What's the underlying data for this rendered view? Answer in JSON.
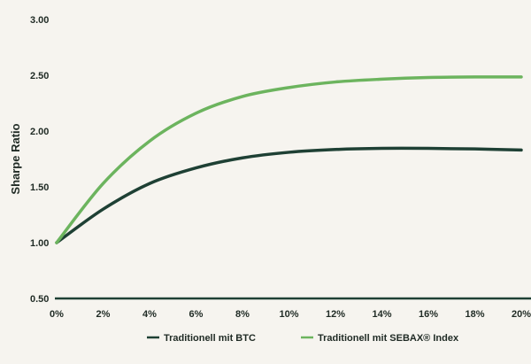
{
  "chart_data": {
    "type": "line",
    "ylabel": "Sharpe Ratio",
    "xlabel": "",
    "x": [
      "0%",
      "2%",
      "4%",
      "6%",
      "8%",
      "10%",
      "12%",
      "14%",
      "16%",
      "18%",
      "20%"
    ],
    "y_ticks": [
      "3.00",
      "2.50",
      "2.00",
      "1.50",
      "1.00",
      "0.50"
    ],
    "ylim": [
      0.5,
      3.0
    ],
    "grid": false,
    "legend_position": "bottom",
    "series": [
      {
        "name": "Traditionell mit BTC",
        "color": "#1e4034",
        "values": [
          1.0,
          1.3,
          1.53,
          1.67,
          1.76,
          1.81,
          1.835,
          1.845,
          1.845,
          1.84,
          1.83
        ]
      },
      {
        "name": "Traditionell mit SEBAX® Index",
        "color": "#6cb45e",
        "values": [
          1.0,
          1.53,
          1.91,
          2.16,
          2.31,
          2.39,
          2.44,
          2.465,
          2.48,
          2.485,
          2.485
        ]
      }
    ]
  }
}
